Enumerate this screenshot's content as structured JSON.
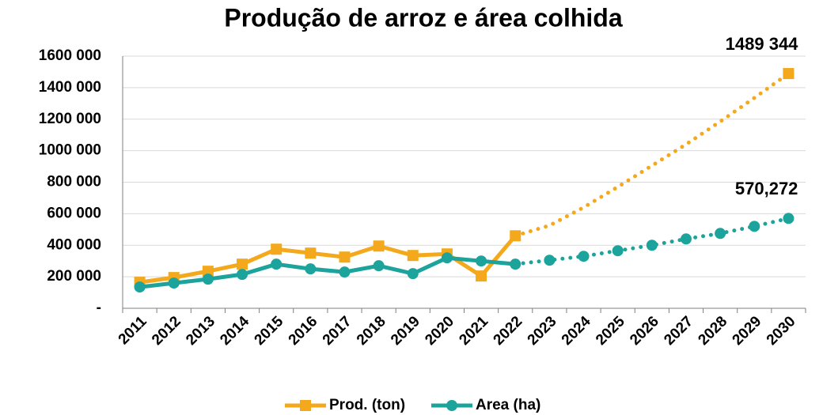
{
  "chart_data": {
    "type": "line",
    "title": "Produção de arroz e área colhida",
    "categories": [
      "2011",
      "2012",
      "2013",
      "2014",
      "2015",
      "2016",
      "2017",
      "2018",
      "2019",
      "2020",
      "2021",
      "2022",
      "2023",
      "2024",
      "2025",
      "2026",
      "2027",
      "2028",
      "2029",
      "2030"
    ],
    "projection_from": "2022",
    "series": [
      {
        "name": "Prod. (ton)",
        "color": "#f4a81c",
        "marker": "square",
        "projection_markers": false,
        "values": [
          165000,
          195000,
          235000,
          280000,
          375000,
          350000,
          325000,
          395000,
          335000,
          345000,
          205000,
          460000,
          525000,
          640000,
          770000,
          905000,
          1040000,
          1185000,
          1335000,
          1489344
        ],
        "value_labels": [
          null,
          null,
          null,
          null,
          null,
          null,
          null,
          null,
          null,
          null,
          null,
          null,
          null,
          null,
          null,
          null,
          null,
          null,
          null,
          "1489 344"
        ]
      },
      {
        "name": "Area (ha)",
        "color": "#1ba39c",
        "marker": "circle",
        "projection_markers": true,
        "values": [
          135000,
          160000,
          185000,
          215000,
          280000,
          250000,
          230000,
          270000,
          220000,
          320000,
          300000,
          280000,
          305000,
          330000,
          365000,
          400000,
          440000,
          475000,
          520000,
          570272
        ],
        "value_labels": [
          null,
          null,
          null,
          null,
          null,
          null,
          null,
          null,
          null,
          null,
          null,
          null,
          null,
          null,
          null,
          null,
          null,
          null,
          null,
          "570,272"
        ]
      }
    ],
    "ylim": [
      0,
      1600000
    ],
    "yticks": [
      {
        "value": 0,
        "label": "-"
      },
      {
        "value": 200000,
        "label": "200 000"
      },
      {
        "value": 400000,
        "label": "400 000"
      },
      {
        "value": 600000,
        "label": "600 000"
      },
      {
        "value": 800000,
        "label": "800 000"
      },
      {
        "value": 1000000,
        "label": "1000 000"
      },
      {
        "value": 1200000,
        "label": "1200 000"
      },
      {
        "value": 1400000,
        "label": "1400 000"
      },
      {
        "value": 1600000,
        "label": "1600 000"
      }
    ],
    "grid": true
  }
}
